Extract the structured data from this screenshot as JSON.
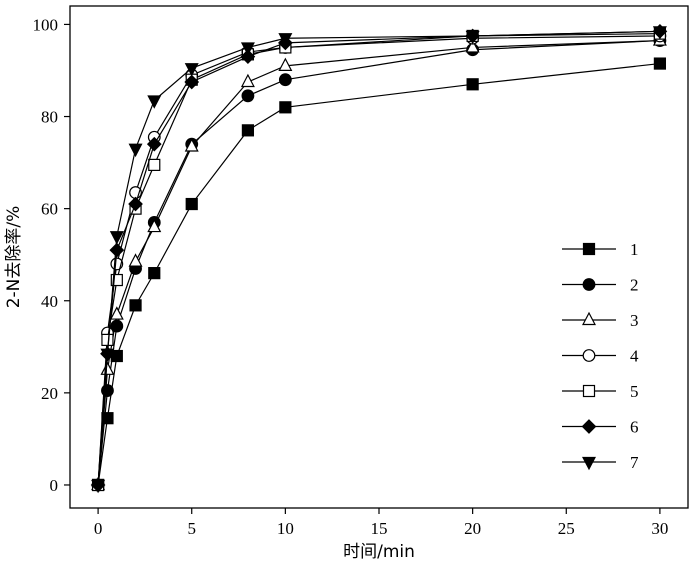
{
  "chart_data": {
    "type": "line",
    "xlabel": "时间/min",
    "ylabel": "2-N去除率/%",
    "xlim": [
      -1.5,
      31.5
    ],
    "ylim": [
      -5,
      104
    ],
    "xticks": [
      0,
      5,
      10,
      15,
      20,
      25,
      30
    ],
    "yticks": [
      0,
      20,
      40,
      60,
      80,
      100
    ],
    "grid": false,
    "legend_position": "right",
    "series": [
      {
        "name": "1",
        "marker": "square-filled",
        "x": [
          0,
          0.5,
          1,
          2,
          3,
          5,
          8,
          10,
          20,
          30
        ],
        "y": [
          0,
          14.5,
          28,
          39,
          46,
          61,
          77,
          82,
          87,
          91.5
        ]
      },
      {
        "name": "2",
        "marker": "circle-filled",
        "x": [
          0,
          0.5,
          1,
          2,
          3,
          5,
          8,
          10,
          20,
          30
        ],
        "y": [
          0,
          20.5,
          34.5,
          47,
          57,
          74,
          84.5,
          88,
          94.5,
          96.5
        ]
      },
      {
        "name": "3",
        "marker": "triangle-open",
        "x": [
          0,
          0.5,
          1,
          2,
          3,
          5,
          8,
          10,
          20,
          30
        ],
        "y": [
          0,
          25,
          37,
          48.5,
          56,
          73.5,
          87.5,
          91,
          95,
          96.5
        ]
      },
      {
        "name": "4",
        "marker": "circle-open",
        "x": [
          0,
          0.5,
          1,
          2,
          3,
          5,
          8,
          10,
          20,
          30
        ],
        "y": [
          0,
          33,
          48,
          63.5,
          75.5,
          89,
          94,
          95,
          97,
          97.5
        ]
      },
      {
        "name": "5",
        "marker": "square-open",
        "x": [
          0,
          0.5,
          1,
          2,
          3,
          5,
          8,
          10,
          20,
          30
        ],
        "y": [
          0,
          31.5,
          44.5,
          60,
          69.5,
          88,
          93.5,
          95,
          97.5,
          98
        ]
      },
      {
        "name": "6",
        "marker": "diamond-filled",
        "x": [
          0,
          0.5,
          1,
          2,
          3,
          5,
          8,
          10,
          20,
          30
        ],
        "y": [
          0,
          28.5,
          51,
          61,
          74,
          87.5,
          93,
          96,
          97.5,
          98.5
        ]
      },
      {
        "name": "7",
        "marker": "triangle-down-filled",
        "x": [
          0,
          0.5,
          1,
          2,
          3,
          5,
          8,
          10,
          20,
          30
        ],
        "y": [
          0,
          28.5,
          54,
          73,
          83.5,
          90.5,
          95,
          97,
          97.5,
          98.5
        ]
      }
    ]
  }
}
